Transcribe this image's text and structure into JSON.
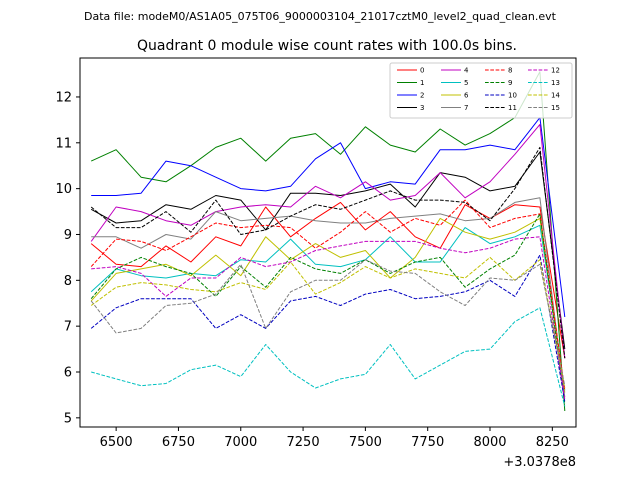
{
  "header": {
    "suptitle": "Data file: modeM0/AS1A05_075T06_9000003104_21017cztM0_level2_quad_clean.evt"
  },
  "chart_data": {
    "type": "line",
    "title": "Quadrant 0 module wise count rates with 100.0s bins.",
    "xlabel": "",
    "ylabel": "",
    "x_offset_label": "+3.0378e8",
    "x_offset_value": 303780000,
    "xlim": [
      6355,
      8345
    ],
    "ylim": [
      4.8,
      12.85
    ],
    "xticks": [
      6500,
      6750,
      7000,
      7250,
      7500,
      7750,
      8000,
      8250
    ],
    "yticks": [
      5,
      6,
      7,
      8,
      9,
      10,
      11,
      12
    ],
    "legend_position": "upper-right",
    "legend_columns": 4,
    "x": [
      6400,
      6500,
      6600,
      6700,
      6800,
      6900,
      7000,
      7100,
      7200,
      7300,
      7400,
      7500,
      7600,
      7700,
      7800,
      7900,
      8000,
      8100,
      8200,
      8300
    ],
    "series": [
      {
        "name": "0",
        "color": "#ff0000",
        "dash": "solid",
        "values": [
          8.8,
          8.35,
          8.3,
          8.75,
          8.4,
          8.95,
          8.75,
          9.6,
          8.95,
          9.35,
          9.7,
          9.1,
          9.5,
          8.95,
          8.7,
          9.65,
          9.35,
          9.65,
          9.6,
          6.3
        ]
      },
      {
        "name": "1",
        "color": "#008000",
        "dash": "solid",
        "values": [
          10.6,
          10.85,
          10.25,
          10.15,
          10.5,
          10.9,
          11.1,
          10.6,
          11.1,
          11.2,
          10.75,
          11.35,
          10.95,
          10.8,
          11.3,
          10.95,
          11.2,
          11.55,
          12.55,
          5.15
        ]
      },
      {
        "name": "2",
        "color": "#0000ff",
        "dash": "solid",
        "values": [
          9.85,
          9.85,
          9.9,
          10.6,
          10.5,
          10.25,
          10.0,
          9.95,
          10.05,
          10.65,
          11.0,
          10.0,
          10.15,
          10.1,
          10.85,
          10.85,
          10.95,
          10.85,
          11.55,
          7.2
        ]
      },
      {
        "name": "3",
        "color": "#000000",
        "dash": "solid",
        "values": [
          9.55,
          9.25,
          9.3,
          9.65,
          9.55,
          9.85,
          9.75,
          9.1,
          9.9,
          9.9,
          9.85,
          9.95,
          10.1,
          9.6,
          10.35,
          10.25,
          9.95,
          10.05,
          10.8,
          6.5
        ]
      },
      {
        "name": "4",
        "color": "#c000c0",
        "dash": "solid",
        "values": [
          8.85,
          9.6,
          9.5,
          9.3,
          9.2,
          9.5,
          9.6,
          9.65,
          9.6,
          10.05,
          9.8,
          10.15,
          9.75,
          9.85,
          10.35,
          9.8,
          10.15,
          10.75,
          11.4,
          6.3
        ]
      },
      {
        "name": "5",
        "color": "#00c0c0",
        "dash": "solid",
        "values": [
          7.75,
          8.25,
          8.1,
          8.05,
          8.15,
          8.1,
          8.45,
          8.4,
          8.9,
          8.35,
          8.3,
          8.45,
          8.95,
          8.4,
          8.4,
          9.15,
          8.8,
          8.95,
          9.2,
          5.6
        ]
      },
      {
        "name": "6",
        "color": "#c0c000",
        "dash": "solid",
        "values": [
          7.55,
          8.15,
          8.25,
          8.35,
          8.1,
          8.55,
          8.1,
          8.95,
          8.45,
          8.8,
          8.5,
          8.65,
          8.05,
          8.5,
          9.35,
          9.05,
          8.9,
          9.05,
          9.35,
          5.55
        ]
      },
      {
        "name": "7",
        "color": "#808080",
        "dash": "solid",
        "values": [
          8.95,
          8.95,
          8.7,
          9.0,
          8.9,
          9.5,
          9.3,
          9.35,
          9.4,
          9.3,
          9.25,
          9.25,
          9.35,
          9.4,
          9.45,
          9.3,
          9.35,
          9.7,
          9.8,
          5.45
        ]
      },
      {
        "name": "8",
        "color": "#ff0000",
        "dash": "dashed",
        "values": [
          8.3,
          8.9,
          8.85,
          8.65,
          8.95,
          9.25,
          9.15,
          9.2,
          9.15,
          8.7,
          9.05,
          9.5,
          9.05,
          9.35,
          9.2,
          9.75,
          9.15,
          9.35,
          9.45,
          5.6
        ]
      },
      {
        "name": "9",
        "color": "#008000",
        "dash": "dashed",
        "values": [
          7.6,
          8.25,
          8.5,
          8.3,
          8.15,
          7.65,
          8.3,
          7.85,
          8.5,
          8.25,
          8.15,
          8.45,
          8.15,
          8.4,
          8.5,
          7.85,
          8.25,
          8.55,
          9.45,
          5.3
        ]
      },
      {
        "name": "10",
        "color": "#0000c0",
        "dash": "dashed",
        "values": [
          6.95,
          7.4,
          7.6,
          7.6,
          7.6,
          6.95,
          7.25,
          6.95,
          7.55,
          7.65,
          7.45,
          7.7,
          7.8,
          7.6,
          7.65,
          7.75,
          8.0,
          7.65,
          8.55,
          5.35
        ]
      },
      {
        "name": "11",
        "color": "#000000",
        "dash": "dashed",
        "values": [
          9.6,
          9.15,
          9.15,
          9.5,
          9.05,
          9.75,
          9.0,
          9.1,
          9.4,
          9.65,
          9.55,
          9.75,
          9.95,
          9.75,
          9.75,
          9.7,
          9.3,
          10.0,
          10.9,
          6.3
        ]
      },
      {
        "name": "12",
        "color": "#c000c0",
        "dash": "dashed",
        "values": [
          8.25,
          8.3,
          8.15,
          7.65,
          8.05,
          8.05,
          8.5,
          8.3,
          8.4,
          8.65,
          8.75,
          8.85,
          8.85,
          8.85,
          8.7,
          8.6,
          8.7,
          8.9,
          8.95,
          5.4
        ]
      },
      {
        "name": "13",
        "color": "#00c0c0",
        "dash": "dashed",
        "values": [
          6.0,
          5.85,
          5.7,
          5.75,
          6.05,
          6.15,
          5.9,
          6.6,
          6.0,
          5.65,
          5.85,
          5.95,
          6.6,
          5.85,
          6.15,
          6.45,
          6.5,
          7.1,
          7.4,
          5.25
        ]
      },
      {
        "name": "14",
        "color": "#c0c000",
        "dash": "dashed",
        "values": [
          7.45,
          7.85,
          7.95,
          7.9,
          7.8,
          7.75,
          7.95,
          7.8,
          8.4,
          7.7,
          7.95,
          8.3,
          8.05,
          8.25,
          8.15,
          8.05,
          8.5,
          8.0,
          8.45,
          5.65
        ]
      },
      {
        "name": "15",
        "color": "#808080",
        "dash": "dashed",
        "values": [
          7.55,
          6.85,
          6.95,
          7.45,
          7.5,
          7.7,
          8.35,
          6.95,
          7.75,
          8.0,
          8.0,
          8.45,
          8.2,
          8.15,
          7.75,
          7.45,
          8.05,
          8.0,
          8.35,
          5.7
        ]
      }
    ]
  }
}
